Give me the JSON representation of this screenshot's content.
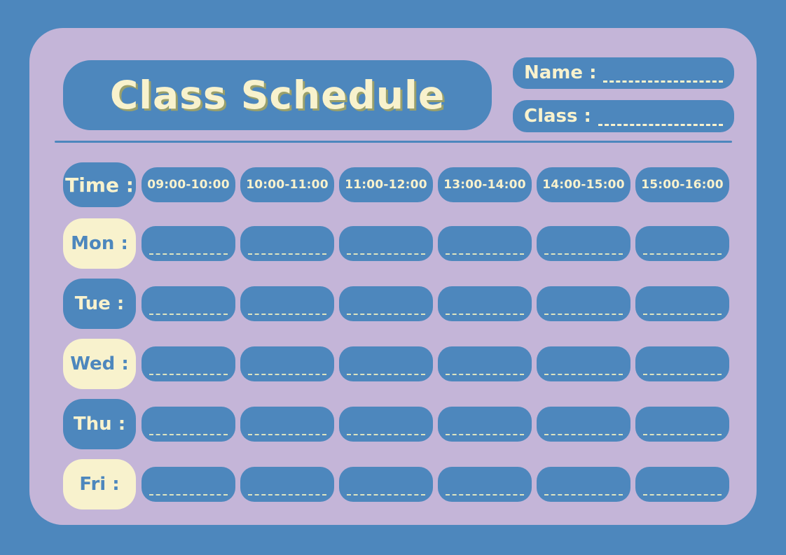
{
  "header": {
    "title": "Class Schedule",
    "name_label": "Name :",
    "class_label": "Class :"
  },
  "schedule": {
    "time_label": "Time :",
    "time_slots": [
      "09:00-10:00",
      "10:00-11:00",
      "11:00-12:00",
      "13:00-14:00",
      "14:00-15:00",
      "15:00-16:00"
    ],
    "days": [
      {
        "label": "Mon :",
        "variant": "cream"
      },
      {
        "label": "Tue :",
        "variant": "blue"
      },
      {
        "label": "Wed :",
        "variant": "cream"
      },
      {
        "label": "Thu :",
        "variant": "blue"
      },
      {
        "label": "Fri :",
        "variant": "cream"
      }
    ]
  },
  "colors": {
    "background_blue": "#4d87bd",
    "card_lavender": "#c4b5d8",
    "cream": "#f8f2cd",
    "cell_dash": "#dce3c0",
    "title_shadow": "#9aa06b"
  }
}
